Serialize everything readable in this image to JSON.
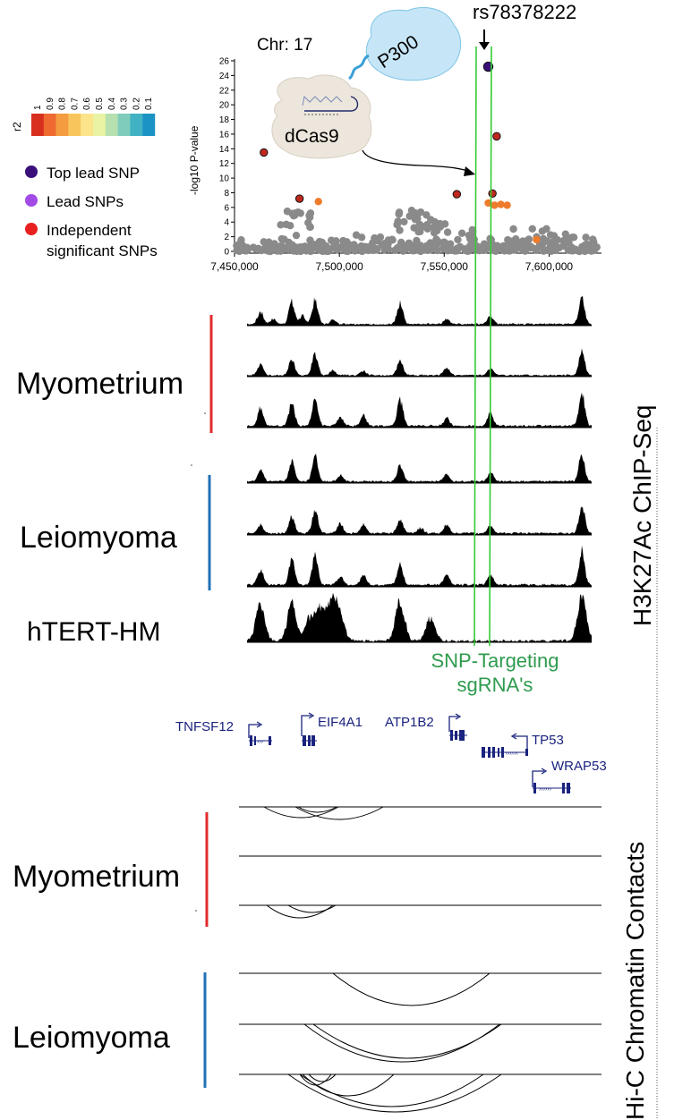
{
  "manhattan": {
    "chr_label": "Chr: 17",
    "snp_label": "rs78378222",
    "y_axis_label": "-log10 P-value",
    "y_ticks": [
      0,
      2,
      4,
      6,
      8,
      10,
      12,
      14,
      16,
      18,
      20,
      22,
      24,
      26
    ],
    "x_ticks": [
      "7,450,000",
      "7,500,000",
      "7,550,000",
      "7,600,000"
    ],
    "x_tick_values": [
      7450000,
      7500000,
      7550000,
      7600000
    ],
    "protein_p300": "P300",
    "protein_dcas9": "dCas9",
    "r2_label": "r2",
    "r2_values": [
      "1",
      "0.9",
      "0.8",
      "0.7",
      "0.6",
      "0.5",
      "0.4",
      "0.3",
      "0.2",
      "0.1"
    ],
    "r2_colors": [
      "#d7301f",
      "#ef6a31",
      "#f39c40",
      "#f8c55c",
      "#fbe48a",
      "#e9f3a3",
      "#b6e0b0",
      "#7fccbb",
      "#40b2c4",
      "#1b93c4"
    ],
    "legend": [
      {
        "label": "Top lead SNP",
        "color": "#3b0f7a"
      },
      {
        "label": "Lead SNPs",
        "color": "#a24be6"
      },
      {
        "label": "Independent",
        "color": "#e8201f"
      }
    ],
    "legend_continuation": "significant SNPs"
  },
  "chart_data": {
    "type": "scatter",
    "title": "",
    "xlabel": "",
    "ylabel": "-log10 P-value",
    "xlim": [
      7450000,
      7625000
    ],
    "ylim": [
      0,
      26
    ],
    "series": [
      {
        "name": "Top lead SNP",
        "color": "#3b0f7a",
        "x": [
          7571000
        ],
        "y": [
          25.2
        ]
      },
      {
        "name": "Independent significant SNPs",
        "color": "#c0281e",
        "x": [
          7464000,
          7481000,
          7556000,
          7575000,
          7573000
        ],
        "y": [
          13.5,
          7.2,
          7.8,
          15.7,
          7.9
        ]
      },
      {
        "name": "r2 0.7",
        "color": "#ee7b2c",
        "x": [
          7490000,
          7571000,
          7574000,
          7577000,
          7580000,
          7594000
        ],
        "y": [
          6.8,
          6.6,
          6.3,
          6.4,
          6.3,
          1.6
        ]
      }
    ]
  },
  "sections": {
    "chip_title": "H3K27Ac ChIP-Seq",
    "hic_title": "Hi-C Chromatin Contacts",
    "myometrium": "Myometrium",
    "leiomyoma": "Leiomyoma",
    "htert": "hTERT-HM",
    "sgrna_line1": "SNP-Targeting",
    "sgrna_line2": "sgRNA's",
    "line_colors": {
      "myometrium": "#e32b2b",
      "leiomyoma": "#2171b5",
      "sgrna": "#33cc33",
      "sgrna_text": "#2e9b4e"
    }
  },
  "genes": {
    "TNFSF12": "TNFSF12",
    "EIF4A1": "EIF4A1",
    "ATP1B2": "ATP1B2",
    "TP53": "TP53",
    "WRAP53": "WRAP53"
  }
}
